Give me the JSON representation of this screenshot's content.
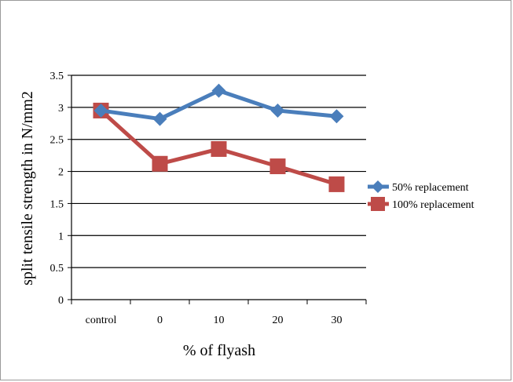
{
  "chart_data": {
    "type": "line",
    "categories": [
      "control",
      "0",
      "10",
      "20",
      "30"
    ],
    "series": [
      {
        "name": "50% replacement",
        "values": [
          2.95,
          2.82,
          3.26,
          2.95,
          2.86
        ],
        "color": "#4a7ebb",
        "marker": "diamond"
      },
      {
        "name": "100% replacement",
        "values": [
          2.95,
          2.12,
          2.35,
          2.08,
          1.8
        ],
        "color": "#be4b48",
        "marker": "square"
      }
    ],
    "xlabel": "% of flyash",
    "ylabel": "split tensile strength in N/mm2",
    "ylim": [
      0,
      3.5
    ],
    "yticks": [
      "0",
      "0.5",
      "1",
      "1.5",
      "2",
      "2.5",
      "3",
      "3.5"
    ],
    "grid": true,
    "legend_position": "right"
  }
}
